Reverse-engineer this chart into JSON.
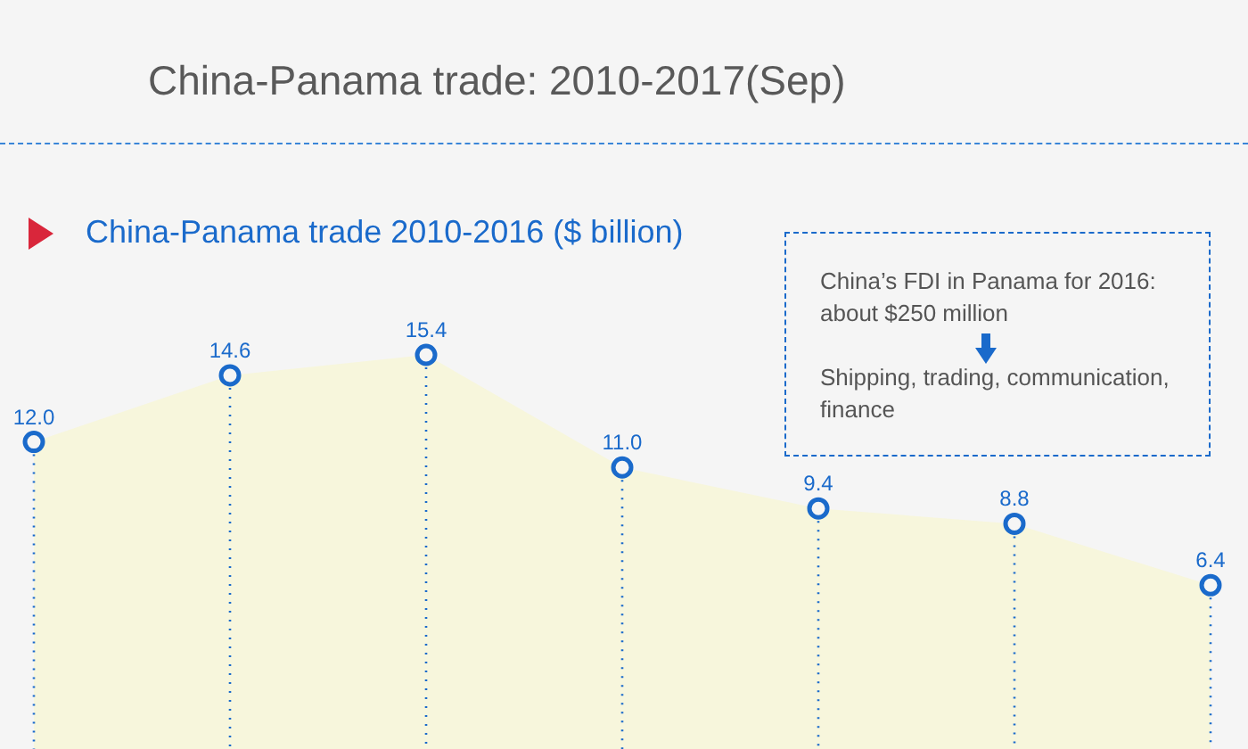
{
  "chart_data": {
    "type": "area",
    "title": "China-Panama trade: 2010-2017(Sep)",
    "subtitle": "China-Panama trade 2010-2016 ($ billion)",
    "annotations": [
      "China’s FDI in Panama for 2016: about $250 million",
      "Shipping, trading, communication, finance"
    ],
    "categories": [
      null,
      null,
      null,
      null,
      null,
      null,
      null
    ],
    "series": [
      {
        "color": "#f7f6dc",
        "values": [
          12.0,
          14.6,
          15.4,
          11.0,
          9.4,
          8.8,
          6.4
        ],
        "value_labels": [
          "12.0",
          "14.6",
          "15.4",
          "11.0",
          "9.4",
          "8.8",
          "6.4"
        ]
      }
    ],
    "marker": "circle",
    "grid": "x"
  }
}
